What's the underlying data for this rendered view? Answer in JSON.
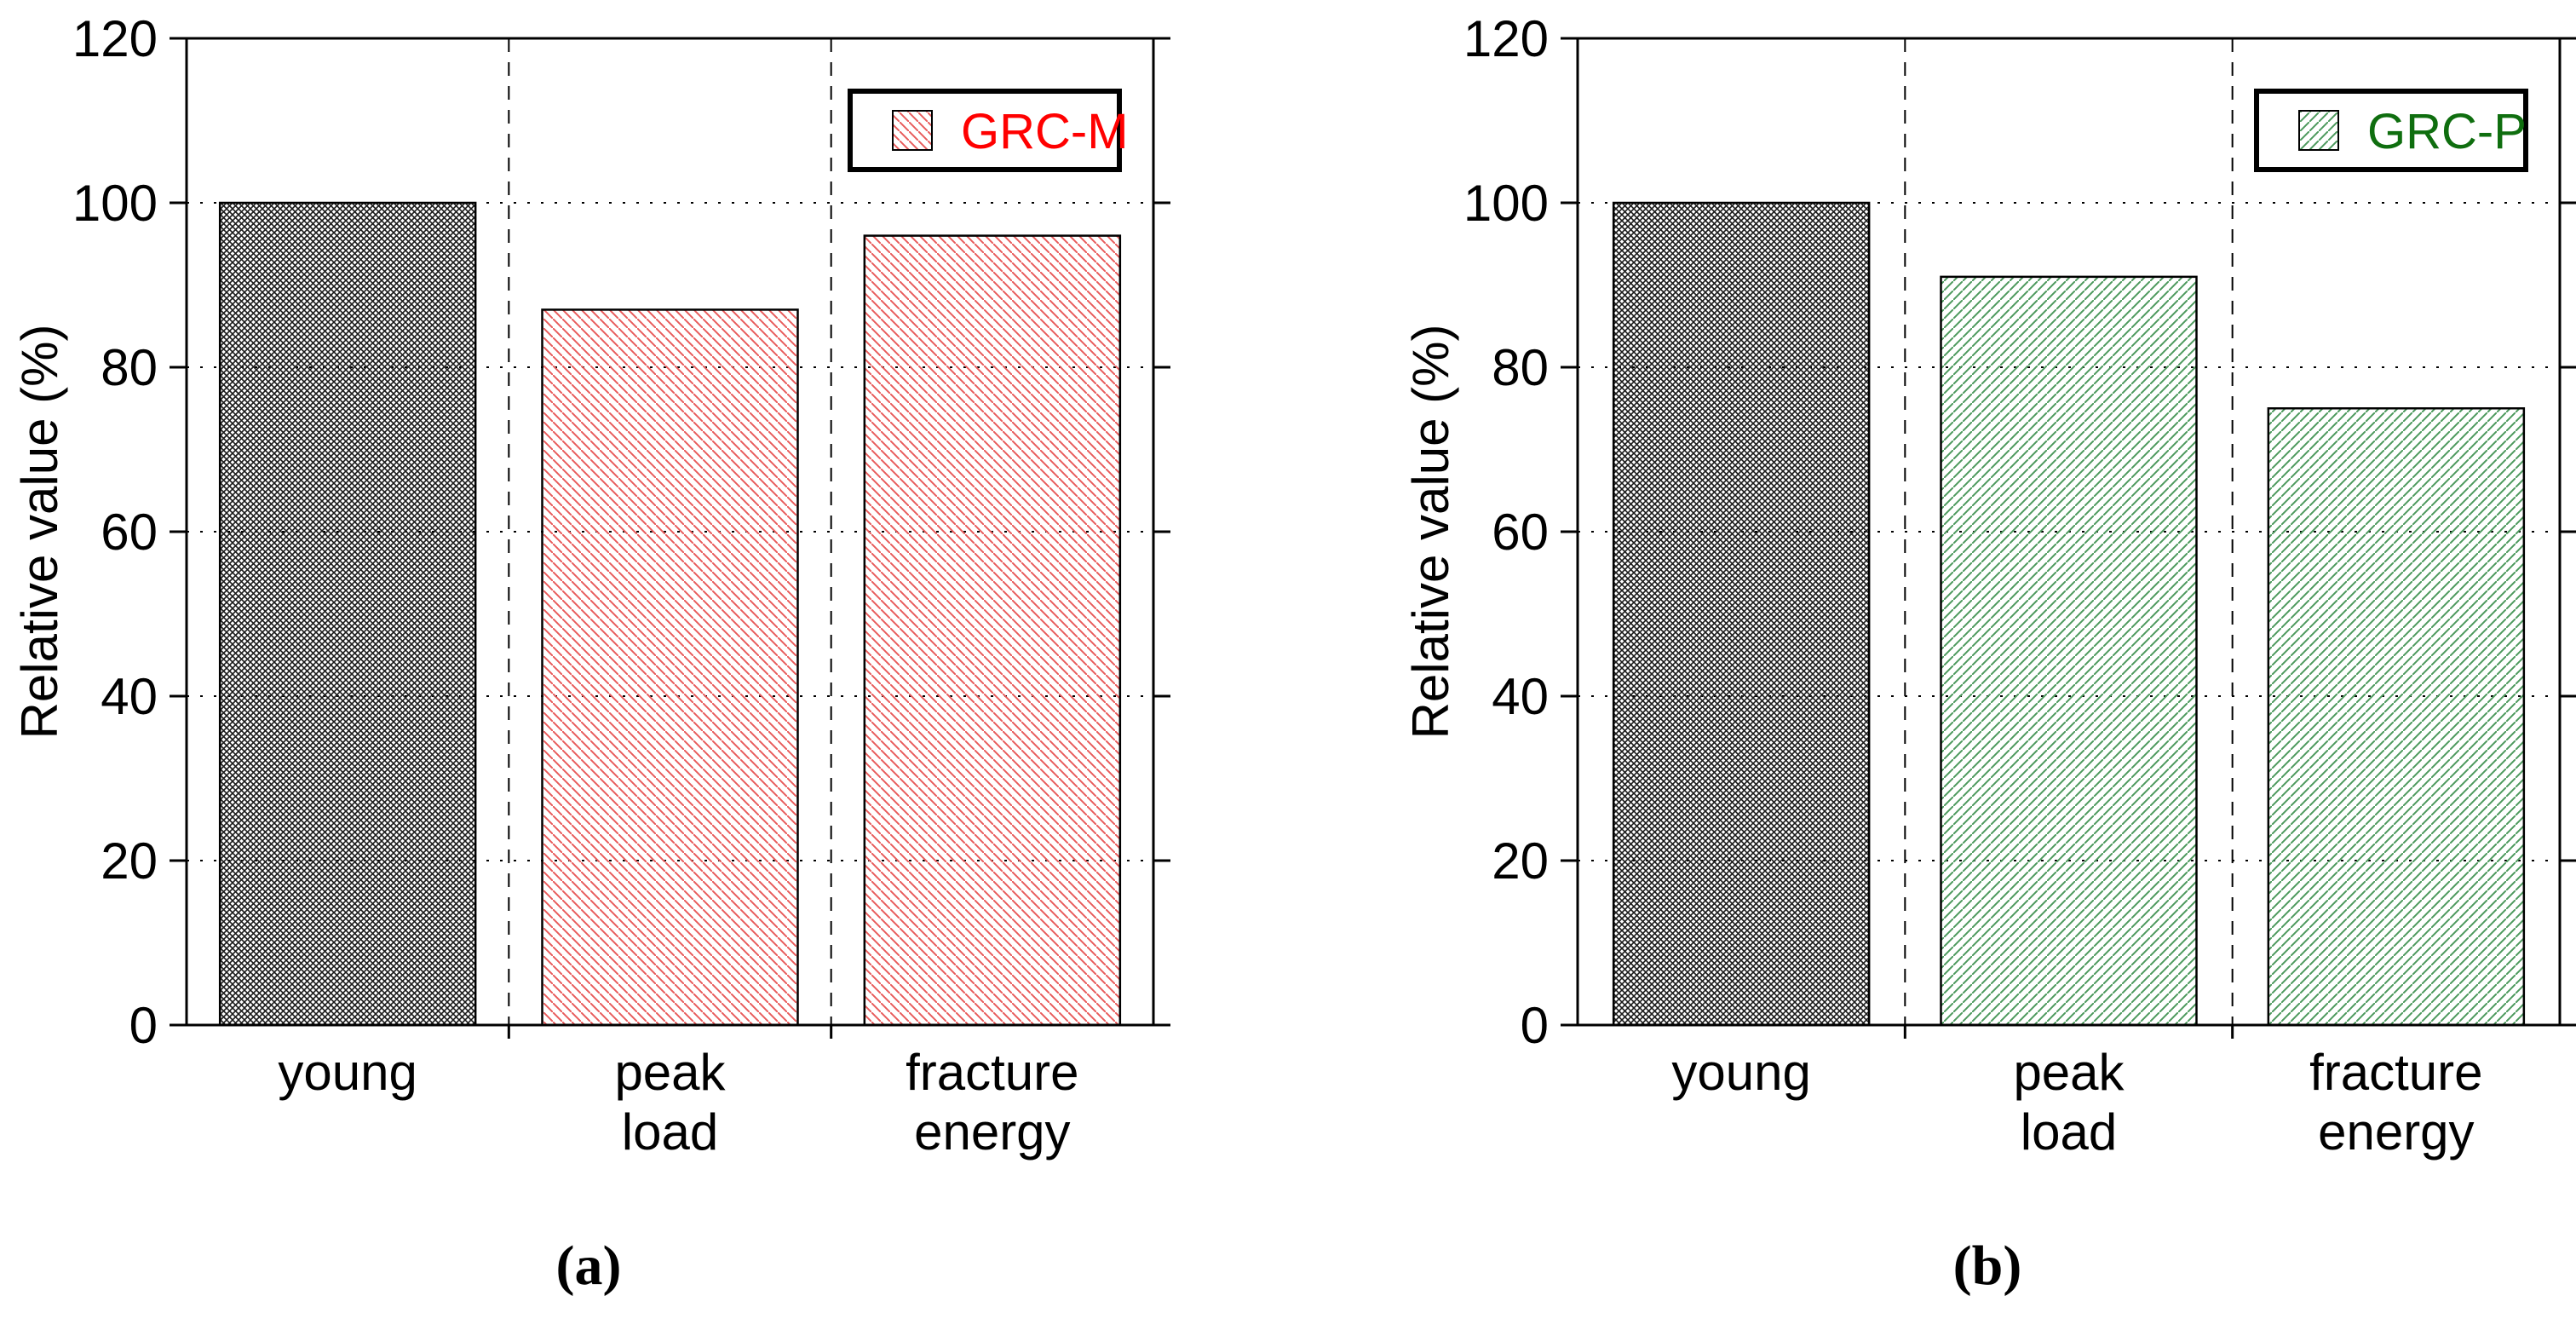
{
  "figure": {
    "captions": {
      "a": "(a)",
      "b": "(b)"
    }
  },
  "chart_data": [
    {
      "type": "bar",
      "panel": "a",
      "panel_caption": "(a)",
      "title": "",
      "categories": [
        "young",
        "peak load",
        "fracture energy"
      ],
      "values": [
        100,
        87,
        96
      ],
      "xlabel": "",
      "ylabel": "Relative value (%)",
      "ylim": [
        0,
        120
      ],
      "yticks": [
        0,
        20,
        40,
        60,
        80,
        100,
        120
      ],
      "grid": true,
      "legend_position": "top-right",
      "legend": {
        "label": "GRC-M",
        "text_color": "#ff0000",
        "hatch_color": "#e85c5c",
        "hatch_direction": "backslash"
      },
      "bar_styles": [
        "black-crosshatch",
        "series-hatch",
        "series-hatch"
      ],
      "bar_outline_color": "#000000",
      "crosshatch_color": "#1a1a1a"
    },
    {
      "type": "bar",
      "panel": "b",
      "panel_caption": "(b)",
      "title": "",
      "categories": [
        "young",
        "peak load",
        "fracture energy"
      ],
      "values": [
        100,
        91,
        75
      ],
      "xlabel": "",
      "ylabel": "Relative value (%)",
      "ylim": [
        0,
        120
      ],
      "yticks": [
        0,
        20,
        40,
        60,
        80,
        100,
        120
      ],
      "grid": true,
      "legend_position": "top-right",
      "legend": {
        "label": "GRC-P",
        "text_color": "#0f6e0f",
        "hatch_color": "#4e9a5e",
        "hatch_direction": "slash"
      },
      "bar_styles": [
        "black-crosshatch",
        "series-hatch",
        "series-hatch"
      ],
      "bar_outline_color": "#000000",
      "crosshatch_color": "#1a1a1a"
    }
  ]
}
